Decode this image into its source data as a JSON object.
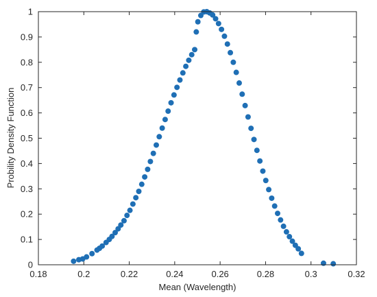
{
  "chart_data": {
    "type": "scatter",
    "title": "",
    "xlabel": "Mean (Wavelength)",
    "ylabel": "Probility Density Function",
    "xlim": [
      0.18,
      0.32
    ],
    "ylim": [
      0,
      1
    ],
    "x_ticks": [
      "0.18",
      "0.2",
      "0.22",
      "0.24",
      "0.26",
      "0.28",
      "0.3",
      "0.32"
    ],
    "y_ticks": [
      "0",
      "0.1",
      "0.2",
      "0.3",
      "0.4",
      "0.5",
      "0.6",
      "0.7",
      "0.8",
      "0.9",
      "1"
    ],
    "grid": false,
    "marker_color": "#1f6fb5",
    "series": [
      {
        "x": [
          0.1955,
          0.1978,
          0.1995,
          0.2012,
          0.2036,
          0.2058,
          0.2069,
          0.2081,
          0.2098,
          0.2112,
          0.2124,
          0.2138,
          0.2151,
          0.2163,
          0.2177,
          0.219,
          0.2203,
          0.2216,
          0.2229,
          0.2242,
          0.2255,
          0.2268,
          0.2281,
          0.2293,
          0.2306,
          0.2319,
          0.2332,
          0.2345,
          0.2358,
          0.2371,
          0.2384,
          0.2397,
          0.241,
          0.2423,
          0.2436,
          0.2449,
          0.2462,
          0.2475,
          0.2488,
          0.2495,
          0.2502,
          0.2515,
          0.2528,
          0.2541,
          0.2554,
          0.2567,
          0.258,
          0.2593,
          0.2606,
          0.2619,
          0.2632,
          0.2645,
          0.2658,
          0.2671,
          0.2684,
          0.2697,
          0.271,
          0.2723,
          0.2736,
          0.2749,
          0.2762,
          0.2775,
          0.2788,
          0.2801,
          0.2814,
          0.2827,
          0.284,
          0.2853,
          0.2866,
          0.2879,
          0.2892,
          0.2905,
          0.2918,
          0.2931,
          0.2944,
          0.2958,
          0.3055,
          0.3098
        ],
        "y": [
          0.014,
          0.02,
          0.023,
          0.031,
          0.044,
          0.058,
          0.065,
          0.074,
          0.088,
          0.1,
          0.112,
          0.127,
          0.142,
          0.157,
          0.174,
          0.195,
          0.215,
          0.24,
          0.265,
          0.29,
          0.318,
          0.347,
          0.377,
          0.408,
          0.44,
          0.473,
          0.506,
          0.54,
          0.574,
          0.607,
          0.64,
          0.671,
          0.701,
          0.73,
          0.758,
          0.784,
          0.808,
          0.83,
          0.85,
          0.92,
          0.96,
          0.985,
          0.999,
          1.0,
          0.995,
          0.987,
          0.972,
          0.953,
          0.93,
          0.903,
          0.872,
          0.838,
          0.8,
          0.76,
          0.718,
          0.674,
          0.629,
          0.584,
          0.539,
          0.495,
          0.452,
          0.41,
          0.37,
          0.333,
          0.297,
          0.263,
          0.232,
          0.203,
          0.177,
          0.152,
          0.13,
          0.111,
          0.093,
          0.077,
          0.063,
          0.045,
          0.006,
          0.004
        ]
      }
    ]
  }
}
